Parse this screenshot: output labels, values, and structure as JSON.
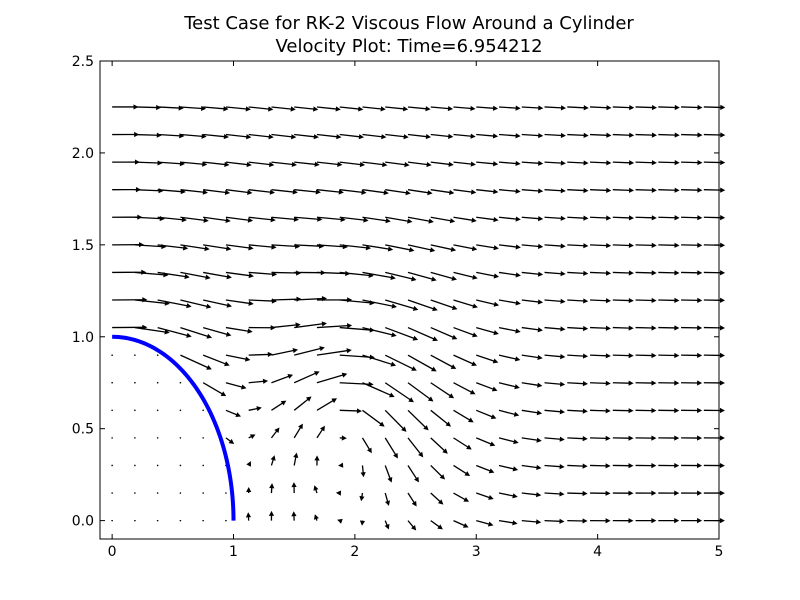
{
  "chart_data": {
    "type": "quiver",
    "title": "Test Case for RK-2 Viscous Flow Around a Cylinder",
    "subtitle": "Velocity Plot: Time=6.954212",
    "xlabel": "",
    "ylabel": "",
    "xlim": [
      -0.1,
      5.0
    ],
    "ylim": [
      -0.1,
      2.5
    ],
    "xticks": [
      0,
      1,
      2,
      3,
      4,
      5
    ],
    "xtick_labels": [
      "0",
      "1",
      "2",
      "3",
      "4",
      "5"
    ],
    "yticks": [
      0.0,
      0.5,
      1.0,
      1.5,
      2.0,
      2.5
    ],
    "ytick_labels": [
      "0.0",
      "0.5",
      "1.0",
      "1.5",
      "2.0",
      "2.5"
    ],
    "grid": false,
    "cylinder": {
      "shape": "quarter-circle",
      "radius": 1.0,
      "color": "#0000ff"
    },
    "arrow_color": "#000000",
    "velocity_field": {
      "grid_x": {
        "start": 0.0,
        "step": 0.1875,
        "count": 27
      },
      "grid_y": {
        "start": 0.0,
        "step": 0.15,
        "count": 16
      },
      "free_stream_speed": 1.0,
      "vortex_center": [
        1.9,
        0.55
      ],
      "vortex_strength": 0.9,
      "note_speed_units": "velocity"
    }
  }
}
